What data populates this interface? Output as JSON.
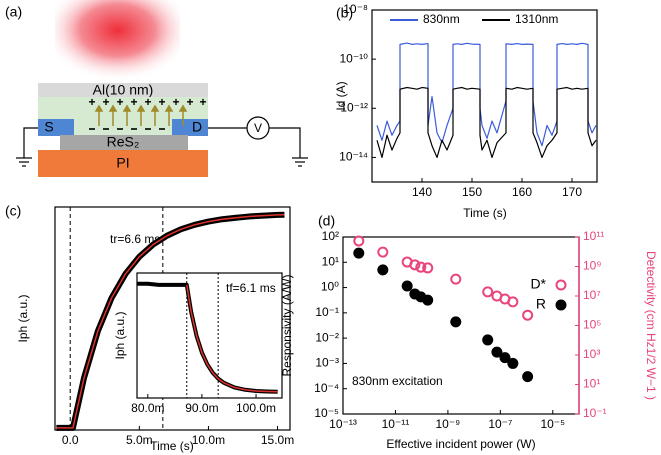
{
  "diagram": {
    "panel": "(a)",
    "layers": [
      "Al(10 nm)",
      "ReS₂",
      "PI"
    ],
    "electrodes": [
      "S",
      "D"
    ],
    "meter": "V"
  },
  "chart_data": [
    {
      "type": "line",
      "panel": "(b)",
      "xlabel": "Time (s)",
      "ylabel": "Id (A)",
      "ylog": true,
      "legend": "top",
      "x": [
        131,
        132,
        133,
        134,
        135,
        135.6,
        135.6,
        137,
        138,
        139,
        140,
        141.2,
        141.2,
        142,
        143,
        144,
        145,
        146.2,
        146.2,
        147,
        148,
        149,
        150,
        151.6,
        151.6,
        152,
        153,
        154,
        155,
        156.8,
        156.8,
        158,
        159,
        160,
        161,
        162.2,
        162.2,
        163,
        164,
        165,
        166,
        167,
        167,
        168,
        169,
        170,
        171,
        172,
        173.2,
        173.2,
        174,
        174.8
      ],
      "series": [
        {
          "name": "830nm",
          "color": "#3b5bdb",
          "values": [
            2e-13,
            5e-14,
            3e-13,
            8e-14,
            2e-13,
            3e-13,
            4e-10,
            4.5e-10,
            4e-10,
            4.2e-10,
            4e-10,
            4.3e-10,
            2e-13,
            3e-12,
            1e-13,
            4e-14,
            2e-13,
            1e-12,
            4e-10,
            4.2e-10,
            4e-10,
            4.4e-10,
            4.1e-10,
            4e-10,
            1e-12,
            2e-13,
            6e-14,
            3e-13,
            1e-13,
            2e-12,
            4.2e-10,
            4e-10,
            4.3e-10,
            4e-10,
            4.1e-10,
            4e-10,
            2e-12,
            1e-13,
            3e-14,
            2e-13,
            8e-14,
            3e-13,
            4e-10,
            4.3e-10,
            4e-10,
            4.2e-10,
            4e-10,
            4.4e-10,
            4e-10,
            3e-13,
            1e-13,
            2e-13
          ]
        },
        {
          "name": "1310nm",
          "color": "#000000",
          "values": [
            5e-14,
            1e-14,
            8e-14,
            2e-14,
            6e-14,
            1e-13,
            6e-12,
            7e-12,
            6.5e-12,
            6e-12,
            7e-12,
            6.5e-12,
            1e-13,
            3e-14,
            1e-14,
            5e-14,
            2e-14,
            8e-14,
            6e-12,
            6.5e-12,
            7e-12,
            6e-12,
            6.5e-12,
            6e-12,
            8e-14,
            2e-14,
            5e-14,
            1e-14,
            4e-14,
            1e-13,
            6.5e-12,
            6e-12,
            7e-12,
            6.5e-12,
            6e-12,
            6.5e-12,
            1e-13,
            4e-14,
            1e-14,
            3e-14,
            5e-14,
            1e-13,
            6e-12,
            6.5e-12,
            7e-12,
            6e-12,
            6.5e-12,
            6e-12,
            6.5e-12,
            1e-13,
            3e-14,
            5e-14
          ]
        }
      ],
      "xlim": [
        130,
        175
      ],
      "xticks": [
        140,
        150,
        160,
        170
      ],
      "ylim": [
        1e-15,
        1e-08
      ],
      "yticks": [
        {
          "value": 1e-14,
          "label": "10⁻¹⁴"
        },
        {
          "value": 1e-12,
          "label": "10⁻¹²"
        },
        {
          "value": 1e-10,
          "label": "10⁻¹⁰"
        },
        {
          "value": 1e-08,
          "label": "10⁻⁸"
        }
      ]
    },
    {
      "type": "line",
      "panel": "(c)",
      "xlabel": "Time (s)",
      "ylabel": "Iph (a.u.)",
      "annotation": "tr=6.6 ms",
      "vlines": [
        0,
        0.0067
      ],
      "x": [
        -0.001,
        -0.0005,
        0,
        0.0002,
        0.001,
        0.002,
        0.003,
        0.004,
        0.005,
        0.006,
        0.007,
        0.008,
        0.009,
        0.01,
        0.011,
        0.012,
        0.013,
        0.014,
        0.015,
        0.0155
      ],
      "series": [
        {
          "color": "#000000",
          "values": [
            0,
            0,
            0,
            0,
            0.233,
            0.451,
            0.607,
            0.718,
            0.798,
            0.855,
            0.896,
            0.926,
            0.947,
            0.962,
            0.973,
            0.98,
            0.986,
            0.99,
            0.993,
            0.994
          ]
        },
        {
          "color": "#e0322c",
          "values": [
            0,
            0,
            0,
            0,
            0.233,
            0.451,
            0.607,
            0.718,
            0.798,
            0.855,
            0.896,
            0.926,
            0.947,
            0.962,
            0.973,
            0.98,
            0.986,
            0.99,
            0.993,
            0.994
          ]
        }
      ],
      "xlim": [
        -0.0011,
        0.0159
      ],
      "xticks": [
        {
          "value": 0,
          "label": "0.0"
        },
        {
          "value": 0.005,
          "label": "5.0m"
        },
        {
          "value": 0.01,
          "label": "10.0m"
        },
        {
          "value": 0.015,
          "label": "15.0m"
        }
      ],
      "ylim": [
        -0.01,
        1.03
      ]
    },
    {
      "type": "line",
      "ylabel": "Iph (a.u.)",
      "annotation": "tf=6.1 ms",
      "vlines": [
        0.0872,
        0.093
      ],
      "x": [
        0.078,
        0.08,
        0.082,
        0.084,
        0.086,
        0.0872,
        0.088,
        0.089,
        0.09,
        0.091,
        0.092,
        0.093,
        0.094,
        0.096,
        0.098,
        0.1,
        0.102,
        0.104
      ],
      "series": [
        {
          "color": "#000000",
          "values": [
            0.96,
            0.96,
            0.95,
            0.95,
            0.95,
            0.95,
            0.726,
            0.523,
            0.381,
            0.282,
            0.212,
            0.163,
            0.129,
            0.089,
            0.069,
            0.059,
            0.055,
            0.052
          ]
        },
        {
          "color": "#e0322c",
          "values": [
            null,
            null,
            null,
            null,
            null,
            0.95,
            0.726,
            0.523,
            0.381,
            0.282,
            0.212,
            0.163,
            0.129,
            0.089,
            0.069,
            0.059,
            0.055,
            0.052
          ]
        }
      ],
      "xlim": [
        0.078,
        0.1048
      ],
      "xticks": [
        {
          "value": 0.08,
          "label": "80.0m"
        },
        {
          "value": 0.09,
          "label": "90.0m"
        },
        {
          "value": 0.1,
          "label": "100.0m"
        }
      ],
      "ylim": [
        0,
        1.05
      ]
    },
    {
      "type": "scatter",
      "panel": "(d)",
      "xlabel": "Effective incident power (W)",
      "ylabel": "Responsivity (A/W)",
      "y2label": "Detectivity (cm Hz1/2 W−1 )",
      "annotation": "830nm excitation",
      "xlog": true,
      "ylog": true,
      "y2log": true,
      "legend": "upper right",
      "x": [
        4e-13,
        3.3e-12,
        2.8e-11,
        5.5e-11,
        9.3e-11,
        1.7e-10,
        2e-09,
        3.3e-08,
        7.4e-08,
        1.5e-07,
        3e-07,
        1.1e-06
      ],
      "series": [
        {
          "name": "D*",
          "color": "#e8457a",
          "marker": "open",
          "axis": "y2",
          "values": [
            54000000000.0,
            9500000000.0,
            2000000000.0,
            1300000000.0,
            900000000.0,
            800000000.0,
            140000000.0,
            19000000.0,
            10000000.0,
            6300000.0,
            4000000.0,
            500000.0
          ]
        },
        {
          "name": "R",
          "color": "#000000",
          "marker": "filled",
          "values": [
            23,
            5,
            1.15,
            0.56,
            0.43,
            0.32,
            0.044,
            0.0085,
            0.0028,
            0.0017,
            0.001,
            0.0003
          ]
        }
      ],
      "xlim": [
        1e-13,
        0.0001
      ],
      "xticks": [
        {
          "value": 1e-13,
          "label": "10⁻¹³"
        },
        {
          "value": 1e-11,
          "label": "10⁻¹¹"
        },
        {
          "value": 1e-09,
          "label": "10⁻⁹"
        },
        {
          "value": 1e-07,
          "label": "10⁻⁷"
        },
        {
          "value": 1e-05,
          "label": "10⁻⁵"
        }
      ],
      "ylim": [
        1e-05,
        100
      ],
      "yticks": [
        {
          "value": 1e-05,
          "label": "10⁻⁵"
        },
        {
          "value": 0.0001,
          "label": "10⁻⁴"
        },
        {
          "value": 0.001,
          "label": "10⁻³"
        },
        {
          "value": 0.01,
          "label": "10⁻²"
        },
        {
          "value": 0.1,
          "label": "10⁻¹"
        },
        {
          "value": 1,
          "label": "10⁰"
        },
        {
          "value": 10,
          "label": "10¹"
        },
        {
          "value": 100,
          "label": "10²"
        }
      ],
      "y2lim": [
        0.1,
        100000000000.0
      ],
      "y2ticks": [
        {
          "value": 0.1,
          "label": "10⁻¹"
        },
        {
          "value": 10,
          "label": "10¹"
        },
        {
          "value": 1000,
          "label": "10³"
        },
        {
          "value": 100000,
          "label": "10⁵"
        },
        {
          "value": 10000000,
          "label": "10⁷"
        },
        {
          "value": 1000000000,
          "label": "10⁹"
        },
        {
          "value": 100000000000,
          "label": "10¹¹"
        }
      ]
    }
  ]
}
